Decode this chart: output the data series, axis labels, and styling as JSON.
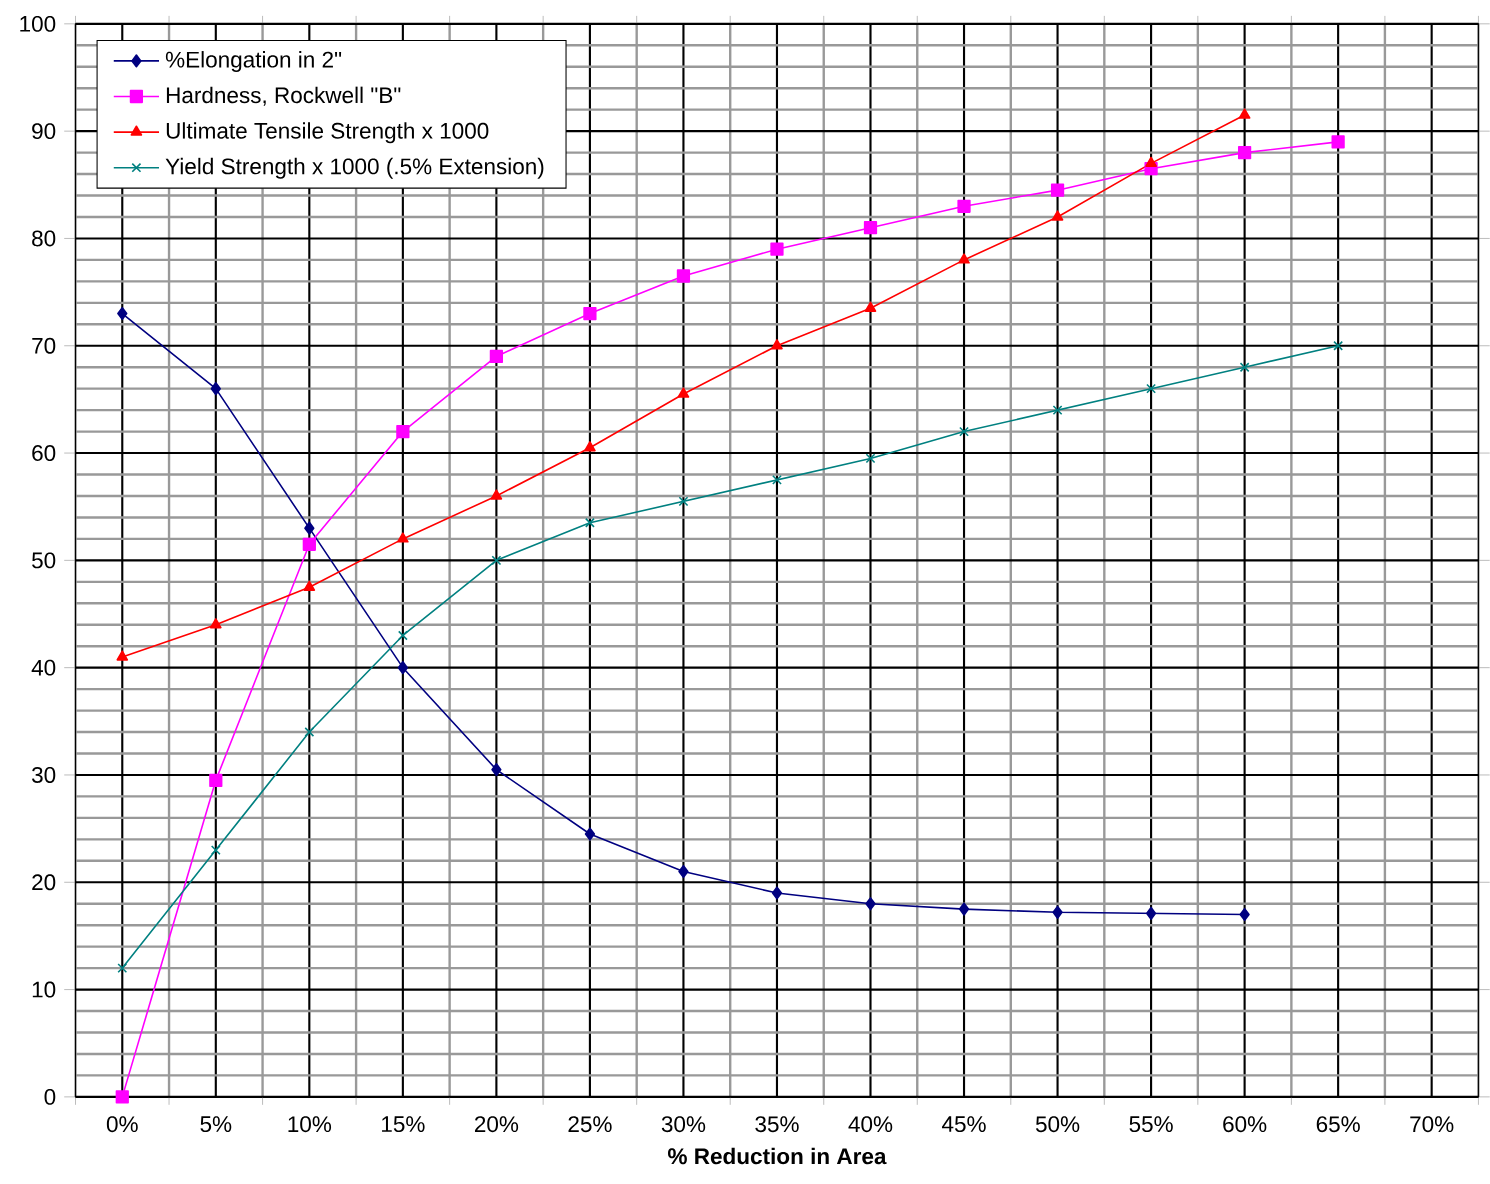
{
  "chart_data": {
    "type": "line",
    "xlabel": "% Reduction in Area",
    "categories": [
      "0%",
      "5%",
      "10%",
      "15%",
      "20%",
      "25%",
      "30%",
      "35%",
      "40%",
      "45%",
      "50%",
      "55%",
      "60%",
      "65%",
      "70%"
    ],
    "series": [
      {
        "name": "%Elongation in 2\"",
        "color": "#000080",
        "marker": "diamond",
        "values": [
          73,
          66,
          53,
          40,
          30.5,
          24.5,
          21,
          19,
          18,
          17.5,
          17.2,
          17.1,
          17,
          null,
          null
        ]
      },
      {
        "name": "Hardness, Rockwell \"B\"",
        "color": "#ff00ff",
        "marker": "square",
        "values": [
          0,
          29.5,
          51.5,
          62,
          69,
          73,
          76.5,
          79,
          81,
          83,
          84.5,
          86.5,
          88,
          89,
          null
        ]
      },
      {
        "name": "Ultimate Tensile Strength x 1000",
        "color": "#ff0000",
        "marker": "triangle",
        "values": [
          41,
          44,
          47.5,
          52,
          56,
          60.5,
          65.5,
          70,
          73.5,
          78,
          82,
          87,
          91.5,
          null,
          null
        ]
      },
      {
        "name": "Yield Strength x 1000 (.5% Extension)",
        "color": "#008080",
        "marker": "cross",
        "values": [
          12,
          23,
          34,
          43,
          50,
          53.5,
          55.5,
          57.5,
          59.5,
          62,
          64,
          66,
          68,
          70,
          null
        ]
      }
    ],
    "ylim": [
      0,
      100
    ],
    "yticks": [
      0,
      10,
      20,
      30,
      40,
      50,
      60,
      70,
      80,
      90,
      100
    ],
    "grid": true,
    "legend": "top left",
    "line_style": "solid"
  }
}
